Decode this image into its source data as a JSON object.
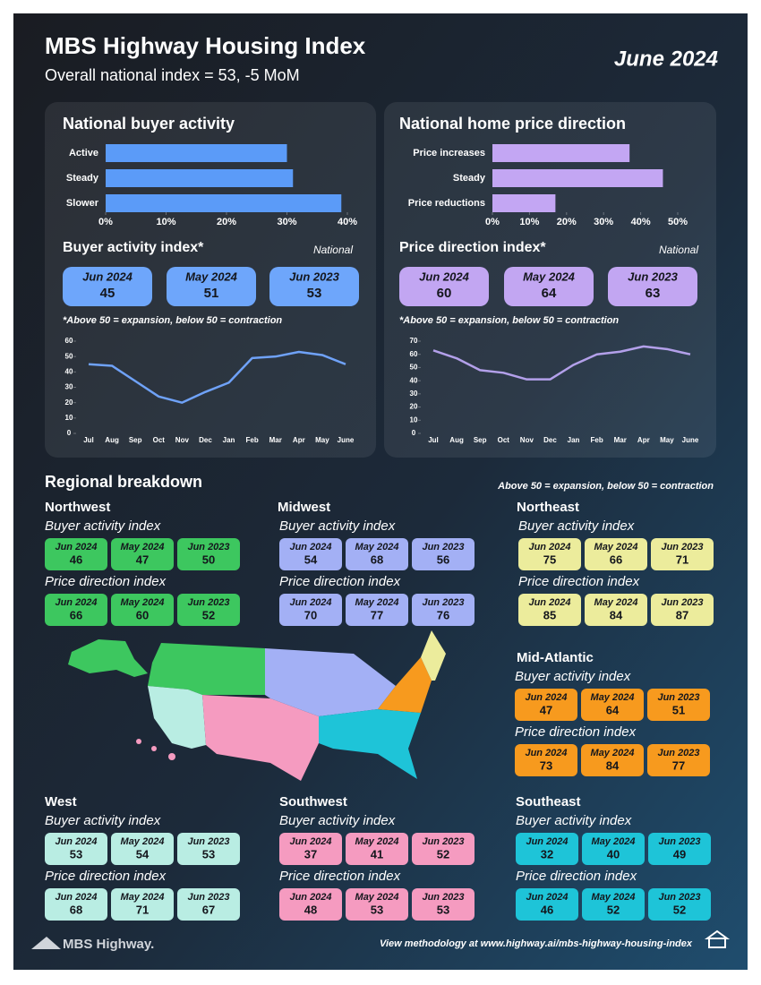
{
  "header": {
    "title": "MBS Highway Housing Index",
    "subtitle": "Overall national index = 53, -5 MoM",
    "date": "June 2024"
  },
  "periods": [
    "Jun 2024",
    "May 2024",
    "Jun 2023"
  ],
  "chart_data": [
    {
      "type": "bar",
      "orientation": "horizontal",
      "title": "National buyer activity",
      "categories": [
        "Active",
        "Steady",
        "Slower"
      ],
      "values": [
        30,
        31,
        39
      ],
      "color": "#5b9bf8",
      "xlim": [
        0,
        40
      ],
      "xticks": [
        {
          "value": 0,
          "label": "0%"
        },
        {
          "value": 10,
          "label": "10%"
        },
        {
          "value": 20,
          "label": "20%"
        },
        {
          "value": 30,
          "label": "30%"
        },
        {
          "value": 40,
          "label": "40%"
        }
      ]
    },
    {
      "type": "bar",
      "orientation": "horizontal",
      "title": "National home price direction",
      "categories": [
        "Price increases",
        "Steady",
        "Price reductions"
      ],
      "values": [
        37,
        46,
        17
      ],
      "color": "#c3a6f3",
      "xlim": [
        0,
        50
      ],
      "xticks": [
        {
          "value": 0,
          "label": "0%"
        },
        {
          "value": 10,
          "label": "10%"
        },
        {
          "value": 20,
          "label": "20%"
        },
        {
          "value": 30,
          "label": "30%"
        },
        {
          "value": 40,
          "label": "40%"
        },
        {
          "value": 50,
          "label": "50%"
        }
      ]
    },
    {
      "type": "line",
      "categories": [
        "Jul",
        "Aug",
        "Sep",
        "Oct",
        "Nov",
        "Dec",
        "Jan",
        "Feb",
        "Mar",
        "Apr",
        "May",
        "June"
      ],
      "values": [
        45,
        44,
        34,
        24,
        20,
        27,
        33,
        49,
        50,
        53,
        51,
        45
      ],
      "color": "#6fa2f8",
      "ylim": [
        0,
        60
      ],
      "yticks": [
        0,
        10,
        20,
        30,
        40,
        50,
        60
      ]
    },
    {
      "type": "line",
      "categories": [
        "Jul",
        "Aug",
        "Sep",
        "Oct",
        "Nov",
        "Dec",
        "Jan",
        "Feb",
        "Mar",
        "Apr",
        "May",
        "June"
      ],
      "values": [
        63,
        57,
        48,
        46,
        41,
        41,
        52,
        60,
        62,
        66,
        64,
        60
      ],
      "color": "#b3a0ea",
      "ylim": [
        0,
        70
      ],
      "yticks": [
        0,
        10,
        20,
        30,
        40,
        50,
        60,
        70
      ]
    }
  ],
  "national_index": [
    {
      "title": "Buyer activity index*",
      "scope": "National",
      "values": [
        45,
        51,
        53
      ],
      "color": "#6ea6fb"
    },
    {
      "title": "Price direction index*",
      "scope": "National",
      "values": [
        60,
        64,
        63
      ],
      "color": "#c2a6f2"
    }
  ],
  "national_note": "*Above 50 = expansion, below 50 = contraction",
  "regional": {
    "title": "Regional breakdown",
    "note": "Above 50 = expansion, below 50 = contraction",
    "buyer_label": "Buyer activity index",
    "price_label": "Price direction index",
    "regions": [
      {
        "name": "Northwest",
        "color": "#3dc75f",
        "buyer": [
          46,
          47,
          50
        ],
        "price": [
          66,
          60,
          52
        ]
      },
      {
        "name": "Midwest",
        "color": "#a3b0f5",
        "buyer": [
          54,
          68,
          56
        ],
        "price": [
          70,
          77,
          76
        ]
      },
      {
        "name": "Northeast",
        "color": "#ecec9c",
        "buyer": [
          75,
          66,
          71
        ],
        "price": [
          85,
          84,
          87
        ]
      },
      {
        "name": "Mid-Atlantic",
        "color": "#f79a1e",
        "buyer": [
          47,
          64,
          51
        ],
        "price": [
          73,
          84,
          77
        ]
      },
      {
        "name": "West",
        "color": "#b9ede3",
        "buyer": [
          53,
          54,
          53
        ],
        "price": [
          68,
          71,
          67
        ]
      },
      {
        "name": "Southwest",
        "color": "#f59bc0",
        "buyer": [
          37,
          41,
          52
        ],
        "price": [
          48,
          53,
          53
        ]
      },
      {
        "name": "Southeast",
        "color": "#1ec4d8",
        "buyer": [
          32,
          40,
          49
        ],
        "price": [
          46,
          52,
          52
        ]
      }
    ]
  },
  "footer": {
    "logo": "MBS Highway.",
    "methodology": "View methodology at www.highway.ai/mbs-highway-housing-index"
  }
}
